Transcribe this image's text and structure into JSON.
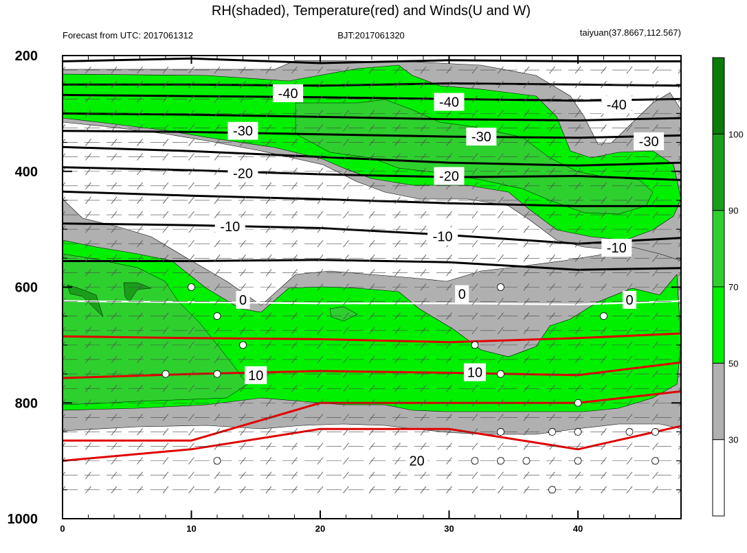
{
  "header": {
    "title": "RH(shaded), Temperature(red) and Winds(U and W)",
    "forecast": "Forecast from UTC: 2017061312",
    "bjt": "BJT:2017061320",
    "station": "taiyuan(37.8667,112.567)"
  },
  "chart_data": {
    "type": "contour",
    "title": "RH(shaded), Temperature(red) and Winds(U and W)",
    "xlabel": "",
    "ylabel": "",
    "xlim": [
      0,
      48
    ],
    "ylim": [
      1000,
      200
    ],
    "y_axis_inverted": true,
    "x_ticks": [
      0,
      10,
      20,
      30,
      40
    ],
    "x_minor_ticks": [
      2,
      4,
      6,
      8,
      12,
      14,
      16,
      18,
      22,
      24,
      26,
      28,
      32,
      34,
      36,
      38,
      42,
      44,
      46,
      48
    ],
    "y_ticks": [
      200,
      400,
      600,
      800,
      1000
    ],
    "y_minor_ticks": [
      250,
      300,
      350,
      450,
      500,
      550,
      650,
      700,
      750,
      850,
      900,
      950
    ],
    "grid": false,
    "rh_colorbar": {
      "levels": [
        30,
        50,
        70,
        90,
        100
      ],
      "colors": [
        "#ffffff",
        "#b0b0b0",
        "#00f000",
        "#2ed02e",
        "#1a9e1a",
        "#0a7a0a"
      ],
      "placement": "right"
    },
    "temperature_contours": {
      "cold_color": "#000000",
      "warm_color": "#e00000",
      "freezing_line_color": "#ffffff",
      "lines": [
        {
          "level": -50,
          "x": [
            0,
            10,
            20,
            30,
            40,
            48
          ],
          "p": [
            210,
            205,
            213,
            208,
            210,
            210
          ]
        },
        {
          "level": -45,
          "x": [
            0,
            10,
            20,
            30,
            40,
            48
          ],
          "p": [
            250,
            250,
            252,
            248,
            250,
            252
          ]
        },
        {
          "level": -40,
          "x": [
            0,
            10,
            20,
            30,
            40,
            48
          ],
          "p": [
            268,
            270,
            272,
            275,
            278,
            275
          ]
        },
        {
          "level": -35,
          "x": [
            0,
            10,
            20,
            30,
            40,
            48
          ],
          "p": [
            300,
            302,
            306,
            310,
            312,
            308
          ]
        },
        {
          "level": -30,
          "x": [
            0,
            10,
            20,
            30,
            40,
            48
          ],
          "p": [
            330,
            332,
            336,
            340,
            342,
            338
          ]
        },
        {
          "level": -25,
          "x": [
            0,
            10,
            20,
            30,
            40,
            48
          ],
          "p": [
            358,
            365,
            375,
            385,
            390,
            385
          ]
        },
        {
          "level": -20,
          "x": [
            0,
            10,
            20,
            30,
            40,
            48
          ],
          "p": [
            393,
            398,
            405,
            410,
            408,
            415
          ]
        },
        {
          "level": -15,
          "x": [
            0,
            10,
            20,
            30,
            40,
            48
          ],
          "p": [
            435,
            442,
            448,
            455,
            460,
            460
          ]
        },
        {
          "level": -10,
          "x": [
            0,
            10,
            20,
            30,
            40,
            48
          ],
          "p": [
            490,
            493,
            498,
            510,
            525,
            515
          ]
        },
        {
          "level": -5,
          "x": [
            0,
            10,
            20,
            30,
            40,
            48
          ],
          "p": [
            555,
            555,
            553,
            557,
            570,
            567
          ]
        },
        {
          "level": 0,
          "x": [
            0,
            10,
            20,
            30,
            40,
            48
          ],
          "p": [
            624,
            626,
            628,
            628,
            630,
            624
          ]
        },
        {
          "level": 5,
          "x": [
            0,
            10,
            20,
            30,
            40,
            48
          ],
          "p": [
            685,
            688,
            690,
            695,
            688,
            680
          ]
        },
        {
          "level": 10,
          "x": [
            0,
            10,
            20,
            30,
            40,
            48
          ],
          "p": [
            757,
            750,
            745,
            748,
            752,
            730
          ]
        },
        {
          "level": 15,
          "x": [
            0,
            10,
            20,
            30,
            40,
            48
          ],
          "p": [
            865,
            865,
            800,
            800,
            800,
            780
          ]
        },
        {
          "level": 20,
          "x": [
            0,
            10,
            20,
            30,
            40,
            48
          ],
          "p": [
            900,
            880,
            845,
            845,
            880,
            840
          ]
        }
      ],
      "labels": [
        {
          "text": "-40",
          "x": 17.5,
          "p": 265
        },
        {
          "text": "-40",
          "x": 30.0,
          "p": 280
        },
        {
          "text": "-40",
          "x": 43.0,
          "p": 285
        },
        {
          "text": "-30",
          "x": 14.0,
          "p": 330
        },
        {
          "text": "-30",
          "x": 32.5,
          "p": 340
        },
        {
          "text": "-30",
          "x": 45.5,
          "p": 348
        },
        {
          "text": "-20",
          "x": 14.0,
          "p": 403
        },
        {
          "text": "-20",
          "x": 30.0,
          "p": 408
        },
        {
          "text": "-10",
          "x": 13.0,
          "p": 495
        },
        {
          "text": "-10",
          "x": 29.5,
          "p": 512
        },
        {
          "text": "-10",
          "x": 43.0,
          "p": 532
        },
        {
          "text": "0",
          "x": 14.0,
          "p": 622
        },
        {
          "text": "0",
          "x": 31.0,
          "p": 612
        },
        {
          "text": "0",
          "x": 44.0,
          "p": 622
        },
        {
          "text": "10",
          "x": 15.0,
          "p": 752
        },
        {
          "text": "10",
          "x": 32.0,
          "p": 747
        },
        {
          "text": "20",
          "x": 27.5,
          "p": 900
        }
      ]
    },
    "wind_levels_hpa": [
      225,
      250,
      275,
      300,
      325,
      350,
      375,
      400,
      425,
      450,
      475,
      500,
      525,
      550,
      575,
      600,
      625,
      650,
      675,
      700,
      725,
      750,
      775,
      800,
      825,
      850,
      875,
      900,
      925,
      950
    ],
    "calm_wind_markers": [
      {
        "x": 10,
        "p": 600
      },
      {
        "x": 34,
        "p": 600
      },
      {
        "x": 12,
        "p": 650
      },
      {
        "x": 42,
        "p": 650
      },
      {
        "x": 14,
        "p": 700
      },
      {
        "x": 32,
        "p": 700
      },
      {
        "x": 8,
        "p": 750
      },
      {
        "x": 12,
        "p": 750
      },
      {
        "x": 34,
        "p": 750
      },
      {
        "x": 40,
        "p": 800
      },
      {
        "x": 34,
        "p": 850
      },
      {
        "x": 38,
        "p": 850
      },
      {
        "x": 40,
        "p": 850
      },
      {
        "x": 44,
        "p": 850
      },
      {
        "x": 46,
        "p": 850
      },
      {
        "x": 12,
        "p": 900
      },
      {
        "x": 32,
        "p": 900
      },
      {
        "x": 34,
        "p": 900
      },
      {
        "x": 36,
        "p": 900
      },
      {
        "x": 40,
        "p": 900
      },
      {
        "x": 46,
        "p": 900
      },
      {
        "x": 38,
        "p": 950
      }
    ]
  }
}
